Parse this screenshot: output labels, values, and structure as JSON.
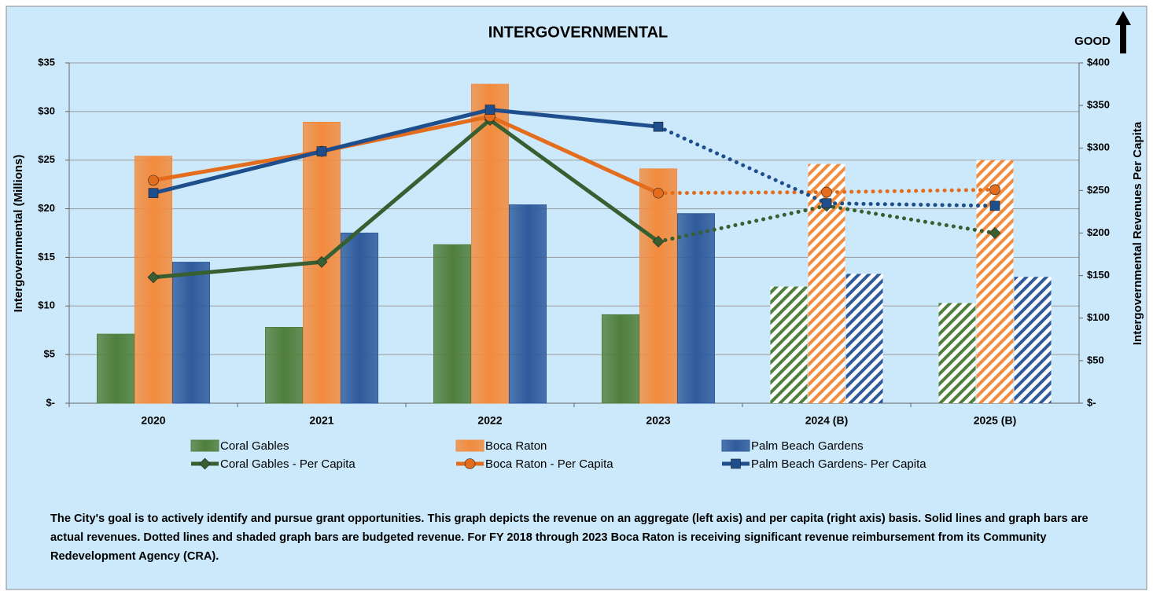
{
  "chart_data": {
    "type": "combo",
    "title": "INTERGOVERNMENTAL",
    "annotation": "GOOD",
    "ylabel": "Intergovernmental (Millions)",
    "y2label": "Intergovernmental Revenues Per Capita",
    "categories": [
      "2020",
      "2021",
      "2022",
      "2023",
      "2024 (B)",
      "2025 (B)"
    ],
    "budgeted": [
      false,
      false,
      false,
      false,
      true,
      true
    ],
    "series": [
      {
        "name": "Coral Gables",
        "type": "bar",
        "color": "#4f7f3c",
        "values": [
          7.1,
          7.8,
          16.3,
          9.1,
          12.0,
          10.3
        ]
      },
      {
        "name": "Boca Raton",
        "type": "bar",
        "color": "#f28b3e",
        "values": [
          25.4,
          28.9,
          32.8,
          24.1,
          24.6,
          25.0
        ]
      },
      {
        "name": "Palm Beach Gardens",
        "type": "bar",
        "color": "#2f5b9c",
        "values": [
          14.5,
          17.5,
          20.4,
          19.5,
          13.3,
          13.0
        ]
      },
      {
        "name": "Coral Gables - Per Capita",
        "type": "line",
        "axis": "y2",
        "marker": "diamond",
        "color": "#375f32",
        "values": [
          148,
          166,
          333,
          190,
          232,
          200
        ]
      },
      {
        "name": "Boca Raton - Per Capita",
        "type": "line",
        "axis": "y2",
        "marker": "circle",
        "color": "#e46c1d",
        "values": [
          262,
          296,
          337,
          247,
          248,
          251
        ]
      },
      {
        "name": "Palm Beach Gardens- Per Capita",
        "type": "line",
        "axis": "y2",
        "marker": "square",
        "color": "#1f4e8c",
        "values": [
          247,
          296,
          345,
          325,
          235,
          232
        ]
      }
    ],
    "ylim": [
      0,
      35
    ],
    "yticks": [
      {
        "value": 0,
        "label": "$-"
      },
      {
        "value": 5,
        "label": "$5"
      },
      {
        "value": 10,
        "label": "$10"
      },
      {
        "value": 15,
        "label": "$15"
      },
      {
        "value": 20,
        "label": "$20"
      },
      {
        "value": 25,
        "label": "$25"
      },
      {
        "value": 30,
        "label": "$30"
      },
      {
        "value": 35,
        "label": "$35"
      }
    ],
    "y2lim": [
      0,
      400
    ],
    "y2ticks": [
      {
        "value": 0,
        "label": "$-"
      },
      {
        "value": 50,
        "label": "$50"
      },
      {
        "value": 100,
        "label": "$100"
      },
      {
        "value": 150,
        "label": "$150"
      },
      {
        "value": 200,
        "label": "$200"
      },
      {
        "value": 250,
        "label": "$250"
      },
      {
        "value": 300,
        "label": "$300"
      },
      {
        "value": 350,
        "label": "$350"
      },
      {
        "value": 400,
        "label": "$400"
      }
    ],
    "grid": true,
    "legend": "bottom",
    "note": "The City's goal is to actively identify and pursue grant opportunities.  This graph depicts the revenue on an aggregate (left axis) and per capita (right axis) basis.  Solid lines and graph bars are actual revenues.  Dotted lines and shaded graph bars are budgeted revenue.  For FY 2018 through 2023 Boca Raton is receiving significant revenue reimbursement from its Community Redevelopment Agency (CRA)."
  }
}
